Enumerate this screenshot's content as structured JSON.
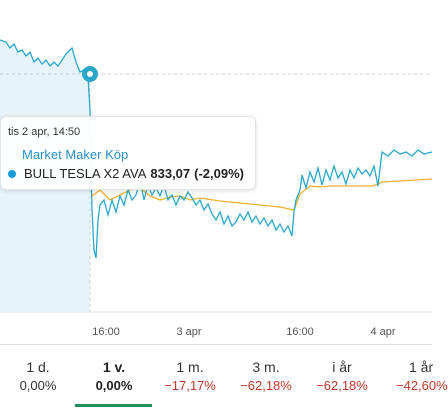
{
  "chart": {
    "x_axis_labels": [
      "16:00",
      "3 apr",
      "16:00",
      "4 apr"
    ],
    "colors": {
      "price_line": "#2aa6c9",
      "price_fill": "#e6f4fa",
      "market_maker_line": "#f0b030",
      "crosshair": "#cccccc",
      "marker": "#2aa6c9"
    }
  },
  "tooltip": {
    "date": "tis 2 apr, 14:50",
    "series_name": "Market Maker Köp",
    "instrument": "BULL TESLA X2 AVA",
    "value": "833,07",
    "change": "(-2,09%)",
    "dot_color": "#1a9ad6"
  },
  "periods": [
    {
      "label": "1 d.",
      "value": "0,00%",
      "negative": false,
      "active": false
    },
    {
      "label": "1 v.",
      "value": "0,00%",
      "negative": false,
      "active": true
    },
    {
      "label": "1 m.",
      "value": "−17,17%",
      "negative": true,
      "active": false
    },
    {
      "label": "3 m.",
      "value": "−62,18%",
      "negative": true,
      "active": false
    },
    {
      "label": "i år",
      "value": "−62,18%",
      "negative": true,
      "active": false
    },
    {
      "label": "1 år",
      "value": "−42,60%",
      "negative": true,
      "active": false
    }
  ]
}
